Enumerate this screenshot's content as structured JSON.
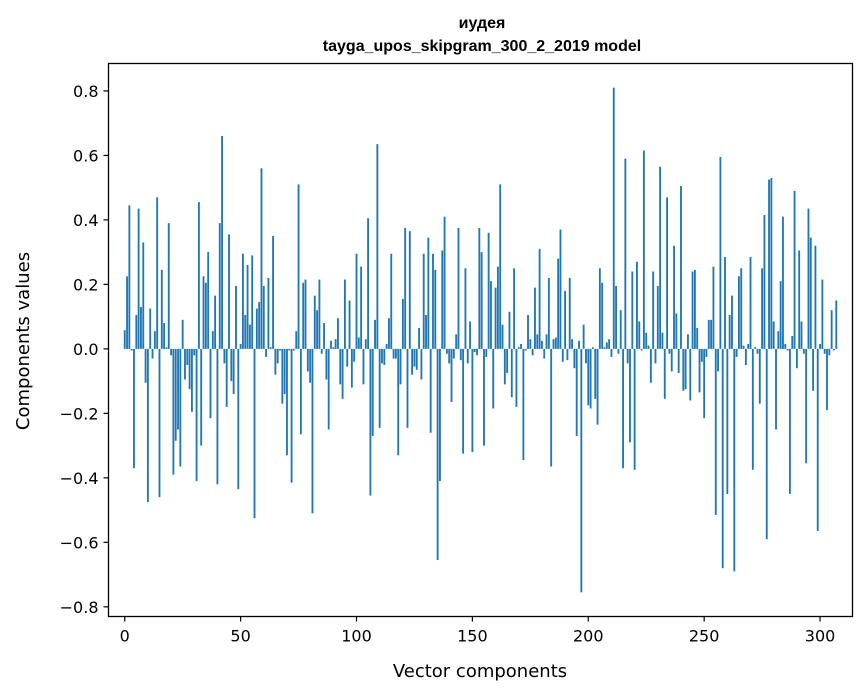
{
  "chart_data": {
    "type": "bar",
    "title_line1": "иудея",
    "title_line2": "tayga_upos_skipgram_300_2_2019 model",
    "xlabel": "Vector components",
    "ylabel": "Components values",
    "xlim": [
      -7,
      314
    ],
    "ylim": [
      -0.83,
      0.885
    ],
    "xticks": [
      0,
      50,
      100,
      150,
      200,
      250,
      300
    ],
    "xtick_labels": [
      "0",
      "50",
      "100",
      "150",
      "200",
      "250",
      "300"
    ],
    "yticks": [
      -0.8,
      -0.6,
      -0.4,
      -0.2,
      0.0,
      0.2,
      0.4,
      0.6,
      0.8
    ],
    "ytick_labels": [
      "−0.8",
      "−0.6",
      "−0.4",
      "−0.2",
      "0.0",
      "0.2",
      "0.4",
      "0.6",
      "0.8"
    ],
    "bar_color": "#1f77b4",
    "values": [
      0.058,
      0.225,
      0.445,
      -0.005,
      -0.37,
      0.105,
      0.435,
      0.13,
      0.33,
      -0.105,
      -0.475,
      0.125,
      -0.03,
      0.055,
      0.47,
      -0.46,
      0.245,
      0.08,
      0.005,
      0.39,
      -0.02,
      -0.39,
      -0.285,
      -0.25,
      -0.365,
      0.09,
      -0.095,
      -0.05,
      -0.125,
      -0.195,
      -0.02,
      -0.41,
      0.455,
      -0.3,
      0.225,
      0.205,
      0.3,
      -0.215,
      0.055,
      0.165,
      -0.42,
      0.39,
      0.66,
      -0.045,
      -0.18,
      0.355,
      -0.1,
      -0.14,
      0.195,
      -0.435,
      0.015,
      0.295,
      0.105,
      0.26,
      0.075,
      0.29,
      -0.525,
      0.125,
      0.145,
      0.56,
      0.195,
      -0.025,
      0.22,
      0.005,
      0.35,
      -0.08,
      -0.045,
      -0.005,
      -0.17,
      -0.14,
      -0.33,
      -0.005,
      -0.415,
      -0.005,
      0.055,
      0.51,
      -0.265,
      0.205,
      0.215,
      -0.07,
      -0.105,
      -0.51,
      0.165,
      0.12,
      0.215,
      -0.015,
      0.08,
      -0.095,
      -0.25,
      0.025,
      0.005,
      0.03,
      0.095,
      -0.11,
      -0.155,
      0.215,
      -0.055,
      0.15,
      -0.12,
      -0.04,
      0.295,
      0.035,
      0.255,
      -0.11,
      0.03,
      0.405,
      -0.455,
      -0.27,
      0.09,
      0.635,
      -0.245,
      -0.045,
      -0.05,
      0.015,
      0.095,
      0.295,
      -0.03,
      -0.03,
      -0.33,
      -0.11,
      0.155,
      0.375,
      -0.245,
      0.365,
      -0.08,
      -0.055,
      -0.065,
      0.065,
      -0.095,
      0.295,
      0.105,
      0.345,
      -0.26,
      0.295,
      0.245,
      -0.655,
      -0.41,
      0.305,
      0.41,
      -0.015,
      -0.045,
      -0.165,
      -0.03,
      0.045,
      0.375,
      -0.035,
      -0.325,
      0.25,
      -0.045,
      0.085,
      -0.32,
      -0.01,
      -0.02,
      0.375,
      0.3,
      -0.3,
      -0.025,
      0.36,
      0.21,
      -0.185,
      0.19,
      0.255,
      0.51,
      0.075,
      -0.11,
      -0.075,
      0.115,
      -0.15,
      0.25,
      -0.18,
      0.005,
      0.015,
      -0.345,
      -0.005,
      0.105,
      0.03,
      -0.02,
      0.19,
      0.045,
      0.31,
      0.025,
      -0.03,
      0.045,
      0.22,
      -0.365,
      0.03,
      0.035,
      0.28,
      0.37,
      -0.04,
      0.18,
      -0.035,
      0.22,
      0.03,
      -0.06,
      -0.27,
      0.025,
      -0.755,
      0.075,
      -0.045,
      -0.175,
      -0.185,
      0.005,
      -0.155,
      -0.235,
      0.25,
      0.205,
      0.005,
      0.02,
      0.03,
      -0.025,
      0.81,
      0.195,
      -0.015,
      0.12,
      -0.37,
      0.59,
      -0.045,
      -0.29,
      0.24,
      -0.375,
      0.27,
      0.085,
      -0.005,
      0.615,
      0.05,
      0.01,
      -0.105,
      0.24,
      -0.045,
      0.195,
      0.565,
      0.05,
      -0.155,
      0.47,
      -0.015,
      -0.07,
      0.32,
      0.11,
      -0.075,
      0.505,
      -0.13,
      -0.125,
      0.045,
      -0.16,
      0.24,
      0.245,
      0.065,
      -0.135,
      -0.04,
      -0.215,
      -0.025,
      0.09,
      0.09,
      0.255,
      -0.515,
      -0.07,
      0.595,
      -0.68,
      0.285,
      -0.45,
      0.105,
      0.165,
      -0.69,
      -0.025,
      0.225,
      0.25,
      0.01,
      -0.05,
      0.015,
      0.285,
      -0.375,
      0.005,
      -0.015,
      -0.17,
      0.25,
      0.415,
      -0.59,
      0.525,
      0.53,
      0.085,
      -0.25,
      0.055,
      0.21,
      0.41,
      0.015,
      -0.005,
      -0.45,
      0.04,
      0.49,
      -0.06,
      0.305,
      0.085,
      -0.015,
      -0.355,
      0.435,
      0.345,
      -0.13,
      0.32,
      -0.565,
      0.015,
      0.215,
      -0.015,
      -0.19,
      -0.02,
      0.12,
      -0.005,
      0.15
    ]
  }
}
